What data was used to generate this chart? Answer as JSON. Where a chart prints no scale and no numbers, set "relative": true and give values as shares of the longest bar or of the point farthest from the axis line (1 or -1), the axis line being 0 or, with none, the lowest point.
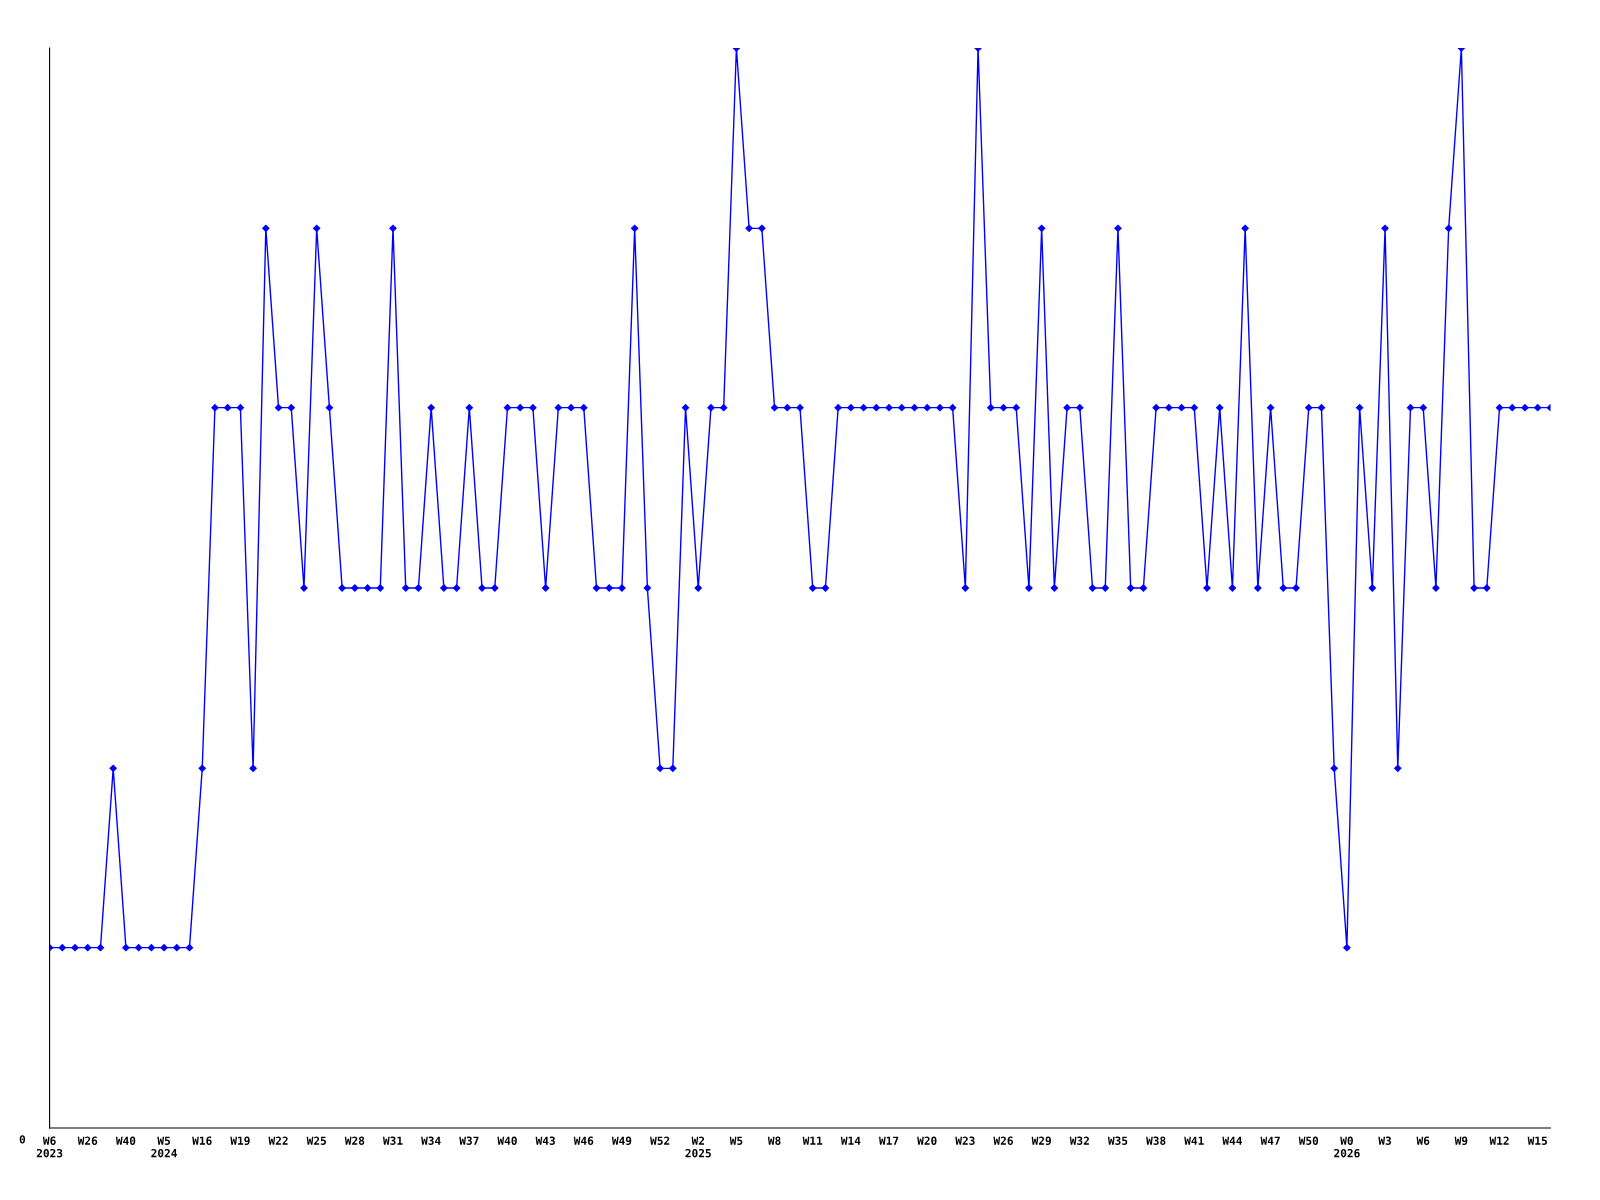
{
  "chart_data": {
    "type": "line",
    "relative": true,
    "marker": "diamond",
    "line_style": "solid",
    "grid": false,
    "legend": false,
    "annotations": [
      "0"
    ],
    "categories": [
      "W6\n2023",
      null,
      null,
      "W26",
      null,
      null,
      "W40",
      null,
      null,
      "W5\n2024",
      null,
      null,
      "W16",
      null,
      null,
      "W19",
      null,
      null,
      "W22",
      null,
      null,
      "W25",
      null,
      null,
      "W28",
      null,
      null,
      "W31",
      null,
      null,
      "W34",
      null,
      null,
      "W37",
      null,
      null,
      "W40",
      null,
      null,
      "W43",
      null,
      null,
      "W46",
      null,
      null,
      "W49",
      null,
      null,
      "W52",
      null,
      null,
      "W2\n2025",
      null,
      null,
      "W5",
      null,
      null,
      "W8",
      null,
      null,
      "W11",
      null,
      null,
      "W14",
      null,
      null,
      "W17",
      null,
      null,
      "W20",
      null,
      null,
      "W23",
      null,
      null,
      "W26",
      null,
      null,
      "W29",
      null,
      null,
      "W32",
      null,
      null,
      "W35",
      null,
      null,
      "W38",
      null,
      null,
      "W41",
      null,
      null,
      "W44",
      null,
      null,
      "W47",
      null,
      null,
      "W50",
      null,
      null,
      "W0\n2026",
      null,
      null,
      "W3",
      null,
      null,
      "W6",
      null,
      null,
      "W9",
      null,
      null,
      "W12",
      null,
      null,
      "W15",
      null
    ],
    "series": [
      {
        "color": "#0000ff",
        "values": [
          0.167,
          0.167,
          0.167,
          0.167,
          0.167,
          0.333,
          0.167,
          0.167,
          0.167,
          0.167,
          0.167,
          0.167,
          0.333,
          0.667,
          0.667,
          0.667,
          0.333,
          0.833,
          0.667,
          0.667,
          0.5,
          0.833,
          0.667,
          0.5,
          0.5,
          0.5,
          0.5,
          0.833,
          0.5,
          0.5,
          0.667,
          0.5,
          0.5,
          0.667,
          0.5,
          0.5,
          0.667,
          0.667,
          0.667,
          0.5,
          0.667,
          0.667,
          0.667,
          0.5,
          0.5,
          0.5,
          0.833,
          0.5,
          0.333,
          0.333,
          0.667,
          0.5,
          0.667,
          0.667,
          1,
          0.833,
          0.833,
          0.667,
          0.667,
          0.667,
          0.5,
          0.5,
          0.667,
          0.667,
          0.667,
          0.667,
          0.667,
          0.667,
          0.667,
          0.667,
          0.667,
          0.667,
          0.5,
          1,
          0.667,
          0.667,
          0.667,
          0.5,
          0.833,
          0.5,
          0.667,
          0.667,
          0.5,
          0.5,
          0.833,
          0.5,
          0.5,
          0.667,
          0.667,
          0.667,
          0.667,
          0.5,
          0.667,
          0.5,
          0.833,
          0.5,
          0.667,
          0.5,
          0.5,
          0.667,
          0.667,
          0.333,
          0.167,
          0.667,
          0.5,
          0.833,
          0.333,
          0.667,
          0.667,
          0.5,
          0.833,
          1,
          0.5,
          0.5,
          0.667,
          0.667,
          0.667,
          0.667,
          0.667
        ]
      }
    ]
  }
}
